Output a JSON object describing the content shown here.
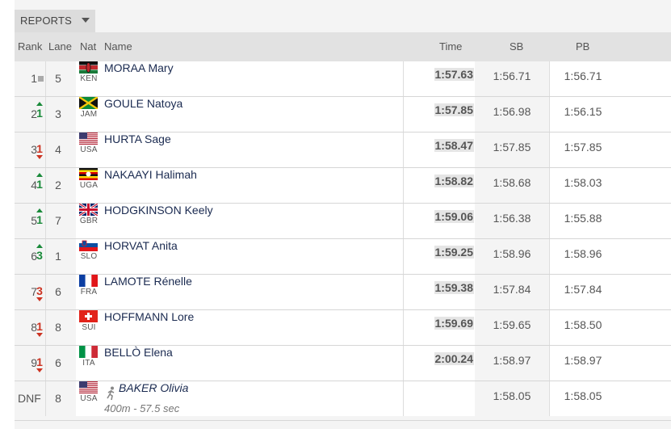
{
  "menu": {
    "label": "REPORTS"
  },
  "columns": {
    "rank": "Rank",
    "lane": "Lane",
    "nat": "Nat",
    "name": "Name",
    "time": "Time",
    "sb": "SB",
    "pb": "PB"
  },
  "rows": [
    {
      "rank": "1",
      "change": "",
      "dir": "same",
      "lane": "5",
      "nat": "KEN",
      "name": "MORAA Mary",
      "time": "1:57.63",
      "sb": "1:56.71",
      "pb": "1:56.71"
    },
    {
      "rank": "2",
      "change": "1",
      "dir": "up",
      "lane": "3",
      "nat": "JAM",
      "name": "GOULE Natoya",
      "time": "1:57.85",
      "sb": "1:56.98",
      "pb": "1:56.15"
    },
    {
      "rank": "3",
      "change": "1",
      "dir": "down",
      "lane": "4",
      "nat": "USA",
      "name": "HURTA Sage",
      "time": "1:58.47",
      "sb": "1:57.85",
      "pb": "1:57.85"
    },
    {
      "rank": "4",
      "change": "1",
      "dir": "up",
      "lane": "2",
      "nat": "UGA",
      "name": "NAKAAYI Halimah",
      "time": "1:58.82",
      "sb": "1:58.68",
      "pb": "1:58.03"
    },
    {
      "rank": "5",
      "change": "1",
      "dir": "up",
      "lane": "7",
      "nat": "GBR",
      "name": "HODGKINSON Keely",
      "time": "1:59.06",
      "sb": "1:56.38",
      "pb": "1:55.88"
    },
    {
      "rank": "6",
      "change": "3",
      "dir": "up",
      "lane": "1",
      "nat": "SLO",
      "name": "HORVAT Anita",
      "time": "1:59.25",
      "sb": "1:58.96",
      "pb": "1:58.96"
    },
    {
      "rank": "7",
      "change": "3",
      "dir": "down",
      "lane": "6",
      "nat": "FRA",
      "name": "LAMOTE Rénelle",
      "time": "1:59.38",
      "sb": "1:57.84",
      "pb": "1:57.84"
    },
    {
      "rank": "8",
      "change": "1",
      "dir": "down",
      "lane": "8",
      "nat": "SUI",
      "name": "HOFFMANN Lore",
      "time": "1:59.69",
      "sb": "1:59.65",
      "pb": "1:58.50"
    },
    {
      "rank": "9",
      "change": "1",
      "dir": "down",
      "lane": "6",
      "nat": "ITA",
      "name": "BELLÒ Elena",
      "time": "2:00.24",
      "sb": "1:58.97",
      "pb": "1:58.97"
    },
    {
      "rank": "DNF",
      "change": "",
      "dir": "none",
      "lane": "8",
      "nat": "USA",
      "name": "BAKER Olivia",
      "note": "400m - 57.5 sec",
      "time": "",
      "sb": "1:58.05",
      "pb": "1:58.05"
    }
  ],
  "colors": {
    "up": "#1a8a3a",
    "down": "#cc3322",
    "name": "#1a2a50",
    "header_bg": "#e2e2e2"
  }
}
